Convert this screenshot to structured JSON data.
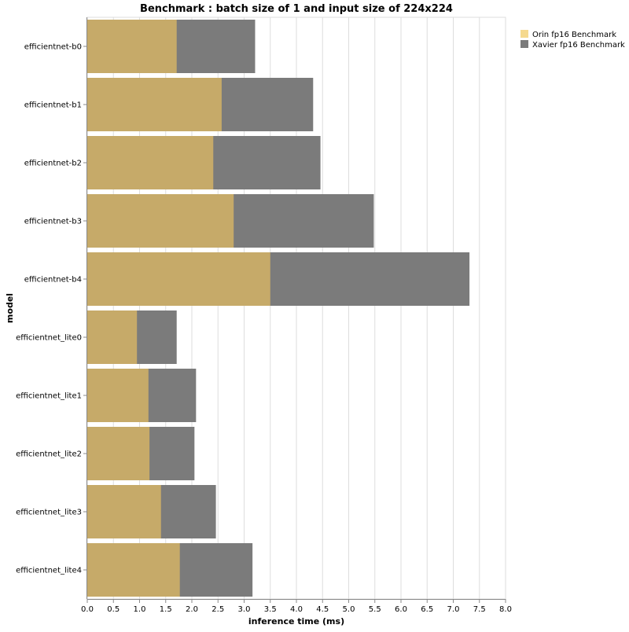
{
  "chart_data": {
    "type": "bar",
    "orientation": "horizontal",
    "stacked": false,
    "title": "Benchmark : batch size of 1 and input size of 224x224",
    "xlabel": "inference time (ms)",
    "ylabel": "model",
    "xlim": [
      0,
      8.0
    ],
    "xticks": [
      "0.0",
      "0.5",
      "1.0",
      "1.5",
      "2.0",
      "2.5",
      "3.0",
      "3.5",
      "4.0",
      "4.5",
      "5.0",
      "5.5",
      "6.0",
      "6.5",
      "7.0",
      "7.5",
      "8.0"
    ],
    "grid": true,
    "legend_position": "top-right",
    "categories": [
      "efficientnet-b0",
      "efficientnet-b1",
      "efficientnet-b2",
      "efficientnet-b3",
      "efficientnet-b4",
      "efficientnet_lite0",
      "efficientnet_lite1",
      "efficientnet_lite2",
      "efficientnet_lite3",
      "efficientnet_lite4"
    ],
    "series": [
      {
        "name": "Xavier fp16 Benchmark",
        "color": "#7b7b7b",
        "values": [
          3.21,
          4.32,
          4.46,
          5.48,
          7.31,
          1.71,
          2.08,
          2.05,
          2.46,
          3.16
        ]
      },
      {
        "name": "Orin fp16 Benchmark",
        "color": "#c6aa69",
        "values": [
          1.71,
          2.57,
          2.41,
          2.8,
          3.5,
          0.95,
          1.17,
          1.19,
          1.41,
          1.77
        ]
      }
    ],
    "legend": [
      {
        "name": "Orin fp16 Benchmark",
        "color": "#f5d98e"
      },
      {
        "name": "Xavier fp16 Benchmark",
        "color": "#7b7b7b"
      }
    ]
  }
}
